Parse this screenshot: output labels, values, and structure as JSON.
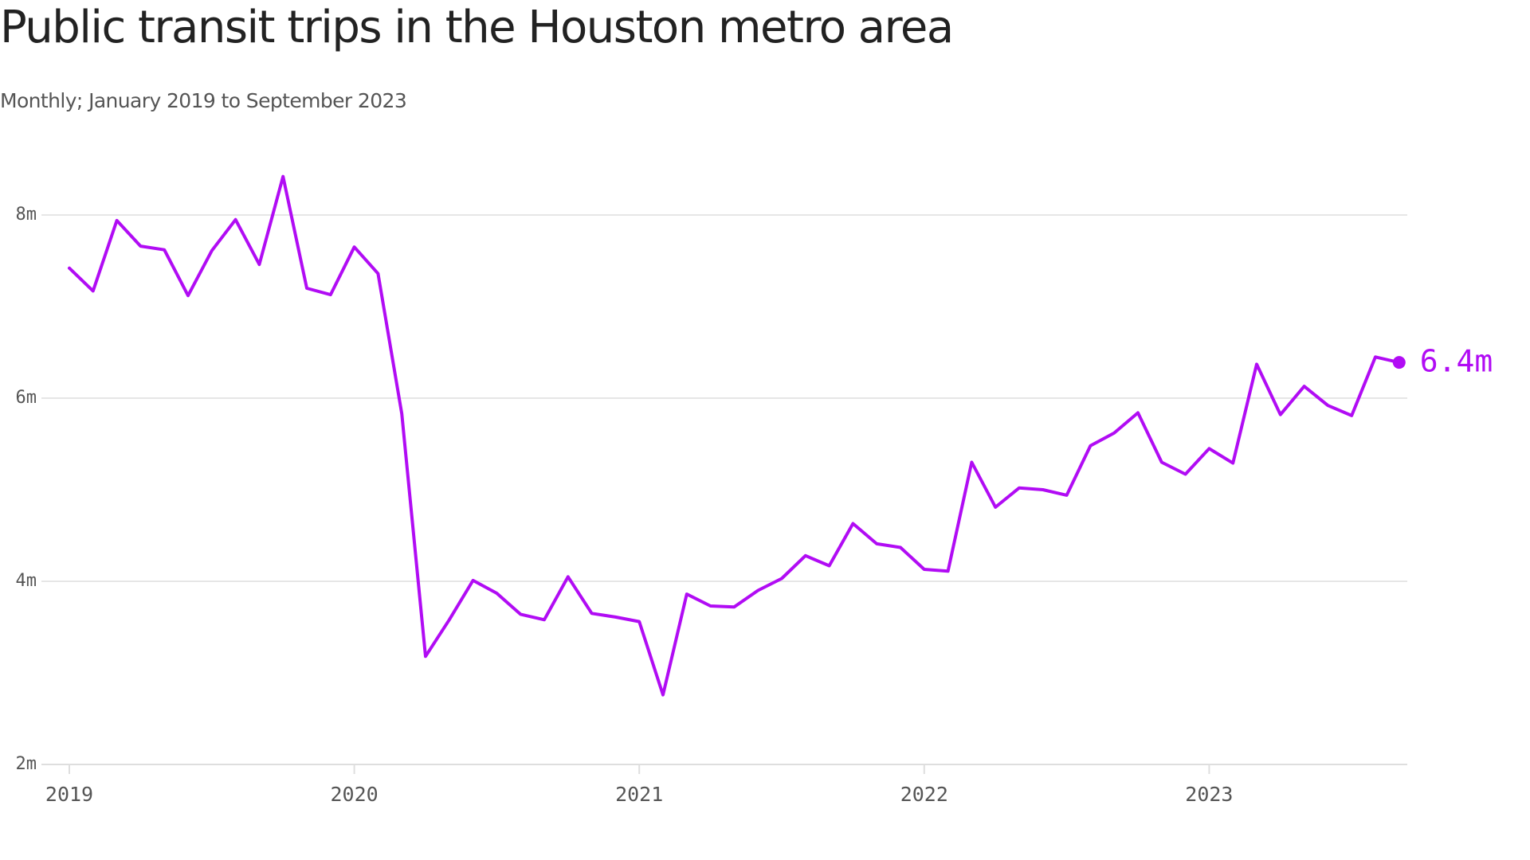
{
  "title": "Public transit trips in the Houston metro area",
  "subtitle": "Monthly; January 2019 to September 2023",
  "colors": {
    "line": "#b10cf4",
    "grid": "#dedede",
    "axis": "#dedede",
    "text": "#222222",
    "muted": "#555555"
  },
  "chart_data": {
    "type": "line",
    "title": "Public transit trips in the Houston metro area",
    "subtitle": "Monthly; January 2019 to September 2023",
    "xlabel": "",
    "ylabel": "",
    "x_start": "2019-01",
    "x_end": "2023-09",
    "x_unit": "month",
    "ylim": [
      2,
      8.3
    ],
    "y_ticks": [
      2,
      4,
      6,
      8
    ],
    "y_tick_labels": [
      "2m",
      "4m",
      "6m",
      "8m"
    ],
    "x_ticks": [
      "2019-01",
      "2020-01",
      "2021-01",
      "2022-01",
      "2023-01"
    ],
    "x_tick_labels": [
      "2019",
      "2020",
      "2021",
      "2022",
      "2023"
    ],
    "grid": true,
    "legend": "none",
    "series": [
      {
        "values": [
          7.42,
          7.17,
          7.94,
          7.66,
          7.62,
          7.12,
          7.61,
          7.95,
          7.46,
          8.42,
          7.2,
          7.13,
          7.65,
          7.36,
          5.83,
          3.18,
          3.58,
          4.01,
          3.87,
          3.64,
          3.58,
          4.05,
          3.65,
          3.61,
          3.56,
          2.76,
          3.86,
          3.73,
          3.72,
          3.9,
          4.03,
          4.28,
          4.17,
          4.63,
          4.41,
          4.37,
          4.13,
          4.11,
          5.3,
          4.81,
          5.02,
          5.0,
          4.94,
          5.48,
          5.62,
          5.84,
          5.3,
          5.17,
          5.45,
          5.29,
          6.37,
          5.82,
          6.13,
          5.92,
          5.81,
          6.45,
          6.39
        ]
      }
    ],
    "end_label": "6.4m"
  }
}
